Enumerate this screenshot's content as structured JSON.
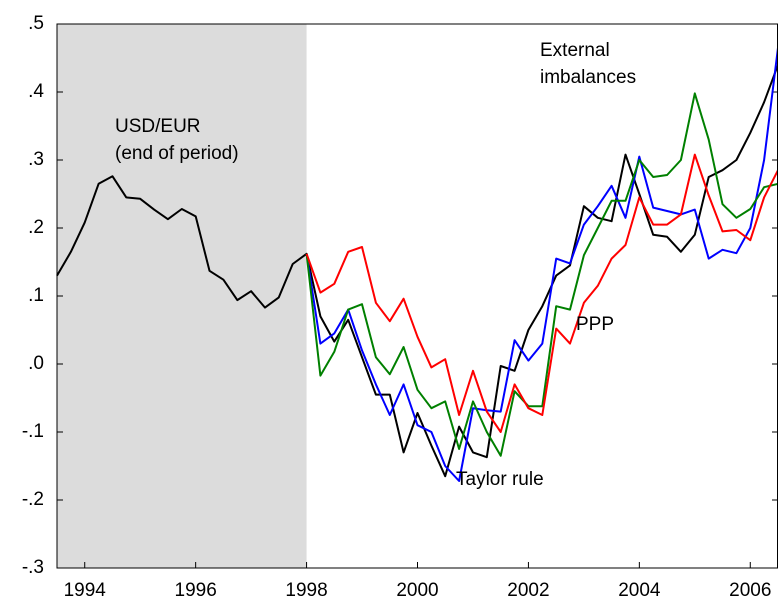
{
  "chart_data": {
    "type": "line",
    "x": [
      1994.0,
      1994.25,
      1994.5,
      1994.75,
      1995.0,
      1995.25,
      1995.5,
      1995.75,
      1996.0,
      1996.25,
      1996.5,
      1996.75,
      1997.0,
      1997.25,
      1997.5,
      1997.75,
      1998.0,
      1998.25,
      1998.5,
      1998.75,
      1999.0,
      1999.25,
      1999.5,
      1999.75,
      2000.0,
      2000.25,
      2000.5,
      2000.75,
      2001.0,
      2001.25,
      2001.5,
      2001.75,
      2002.0,
      2002.25,
      2002.5,
      2002.75,
      2003.0,
      2003.25,
      2003.5,
      2003.75,
      2004.0,
      2004.25,
      2004.5,
      2004.75,
      2005.0,
      2005.25,
      2005.5,
      2005.75,
      2006.0,
      2006.25,
      2006.5,
      2006.75,
      2007.0
    ],
    "series": [
      {
        "label_lines": [
          "USD/EUR",
          "(end of period)"
        ],
        "color": "#000000",
        "values": [
          0.13,
          0.165,
          0.208,
          0.265,
          0.276,
          0.245,
          0.243,
          0.227,
          0.213,
          0.228,
          0.217,
          0.137,
          0.124,
          0.094,
          0.107,
          0.083,
          0.098,
          0.147,
          0.162,
          0.07,
          0.033,
          0.065,
          0.01,
          -0.045,
          -0.045,
          -0.13,
          -0.072,
          -0.12,
          -0.165,
          -0.092,
          -0.13,
          -0.137,
          -0.003,
          -0.01,
          0.05,
          0.085,
          0.13,
          0.145,
          0.232,
          0.215,
          0.21,
          0.308,
          0.25,
          0.19,
          0.187,
          0.165,
          0.19,
          0.275,
          0.285,
          0.3,
          0.34,
          0.385,
          0.44
        ]
      },
      {
        "name": "Taylor rule",
        "color": "#0000ff",
        "values": [
          null,
          null,
          null,
          null,
          null,
          null,
          null,
          null,
          null,
          null,
          null,
          null,
          null,
          null,
          null,
          null,
          null,
          null,
          0.162,
          0.03,
          0.045,
          0.08,
          0.02,
          -0.03,
          -0.075,
          -0.03,
          -0.09,
          -0.1,
          -0.15,
          -0.172,
          -0.065,
          -0.068,
          -0.07,
          0.035,
          0.005,
          0.03,
          0.155,
          0.148,
          0.205,
          0.232,
          0.262,
          0.215,
          0.305,
          0.23,
          0.225,
          0.22,
          0.227,
          0.155,
          0.168,
          0.163,
          0.2,
          0.3,
          0.465
        ]
      },
      {
        "label_lines": [
          "External",
          "imbalances"
        ],
        "color": "#008000",
        "values": [
          null,
          null,
          null,
          null,
          null,
          null,
          null,
          null,
          null,
          null,
          null,
          null,
          null,
          null,
          null,
          null,
          null,
          null,
          0.162,
          -0.017,
          0.018,
          0.08,
          0.088,
          0.01,
          -0.015,
          0.025,
          -0.038,
          -0.065,
          -0.055,
          -0.125,
          -0.055,
          -0.1,
          -0.135,
          -0.04,
          -0.062,
          -0.062,
          0.085,
          0.08,
          0.16,
          0.2,
          0.24,
          0.24,
          0.3,
          0.275,
          0.278,
          0.3,
          0.398,
          0.33,
          0.235,
          0.215,
          0.228,
          0.26,
          0.265
        ]
      },
      {
        "name": "PPP",
        "color": "#ff0000",
        "values": [
          null,
          null,
          null,
          null,
          null,
          null,
          null,
          null,
          null,
          null,
          null,
          null,
          null,
          null,
          null,
          null,
          null,
          null,
          0.162,
          0.105,
          0.118,
          0.165,
          0.172,
          0.09,
          0.063,
          0.096,
          0.04,
          -0.005,
          0.007,
          -0.075,
          -0.01,
          -0.07,
          -0.1,
          -0.03,
          -0.065,
          -0.075,
          0.052,
          0.03,
          0.09,
          0.115,
          0.155,
          0.175,
          0.245,
          0.205,
          0.205,
          0.22,
          0.308,
          0.248,
          0.195,
          0.197,
          0.182,
          0.245,
          0.285
        ]
      }
    ],
    "shaded_region": [
      1994.0,
      1998.5
    ],
    "shade_color": "#dcdcdc",
    "xlim": [
      1994.0,
      2007.0
    ],
    "xticks": [
      {
        "value": 1994.5,
        "label": "1994"
      },
      {
        "value": 1996.5,
        "label": "1996"
      },
      {
        "value": 1998.5,
        "label": "1998"
      },
      {
        "value": 2000.5,
        "label": "2000"
      },
      {
        "value": 2002.5,
        "label": "2002"
      },
      {
        "value": 2004.5,
        "label": "2004"
      },
      {
        "value": 2006.5,
        "label": "2006"
      }
    ],
    "ylim": [
      -0.3,
      0.5
    ],
    "yticks": [
      {
        "value": -0.3,
        "label": "-.3"
      },
      {
        "value": -0.2,
        "label": "-.2"
      },
      {
        "value": -0.1,
        "label": "-.1"
      },
      {
        "value": 0,
        "label": ".0"
      },
      {
        "value": 0.1,
        "label": ".1"
      },
      {
        "value": 0.2,
        "label": ".2"
      },
      {
        "value": 0.3,
        "label": ".3"
      },
      {
        "value": 0.4,
        "label": ".4"
      },
      {
        "value": 0.5,
        "label": ".5"
      }
    ]
  }
}
